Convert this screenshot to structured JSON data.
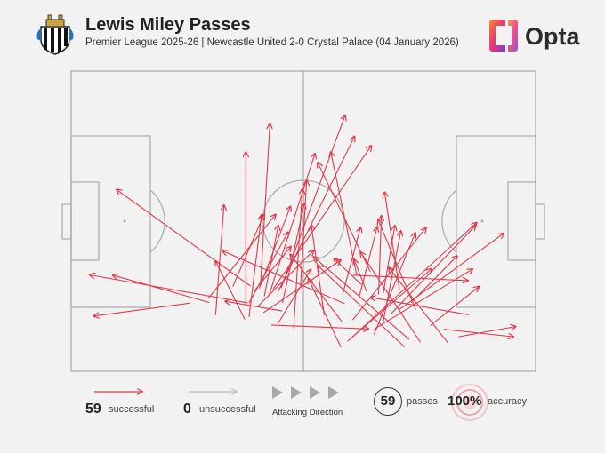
{
  "header": {
    "title": "Lewis Miley Passes",
    "subtitle": "Premier League 2025-26 | Newcastle United 2-0 Crystal Palace (04 January 2026)",
    "brand": "Opta"
  },
  "colors": {
    "successful": "#e0394a",
    "unsuccessful": "#bbbbbb",
    "pitch_line": "#aaaaaa"
  },
  "legend": {
    "successful_count": "59",
    "successful_label": "successful",
    "unsuccessful_count": "0",
    "unsuccessful_label": "unsuccessful",
    "direction_label": "Attacking Direction",
    "passes_count": "59",
    "passes_label": "passes",
    "accuracy_value": "100%",
    "accuracy_label": "accuracy"
  },
  "passes": [
    [
      45.2,
      27.7,
      59.0,
      85.3
    ],
    [
      44.5,
      26.4,
      61.0,
      78.2
    ],
    [
      42.6,
      25.3,
      52.5,
      72.5
    ],
    [
      38.6,
      28.4,
      9.8,
      60.5
    ],
    [
      40.8,
      29.8,
      42.8,
      82.4
    ],
    [
      43.5,
      27.4,
      64.6,
      75.1
    ],
    [
      61.5,
      31.9,
      55.9,
      73.0
    ],
    [
      64.4,
      33.2,
      53.1,
      69.5
    ],
    [
      70.7,
      27.1,
      67.5,
      59.6
    ],
    [
      49.4,
      28.6,
      50.7,
      63.6
    ],
    [
      45.5,
      22.8,
      50.2,
      55.8
    ],
    [
      40.5,
      27.6,
      47.2,
      54.9
    ],
    [
      41.6,
      25.0,
      44.6,
      48.6
    ],
    [
      39.4,
      26.7,
      47.3,
      41.5
    ],
    [
      38.3,
      22.8,
      46.7,
      46.3
    ],
    [
      40.1,
      21.5,
      52.2,
      40.2
    ],
    [
      41.4,
      19.5,
      58.0,
      37.0
    ],
    [
      45.4,
      20.1,
      33.2,
      23.3
    ],
    [
      58.9,
      22.5,
      32.6,
      40.1
    ],
    [
      58.3,
      16.5,
      47.2,
      38.9
    ],
    [
      60.4,
      11.2,
      87.3,
      49.5
    ],
    [
      58.1,
      8.0,
      51.1,
      30.8
    ],
    [
      59.5,
      10.0,
      77.6,
      34.1
    ],
    [
      65.2,
      12.2,
      74.1,
      46.1
    ],
    [
      65.2,
      14.0,
      86.4,
      34.0
    ],
    [
      71.8,
      8.1,
      53.1,
      35.2
    ],
    [
      75.2,
      9.7,
      62.3,
      39.7
    ],
    [
      81.2,
      9.3,
      68.4,
      34.5
    ],
    [
      72.8,
      10.6,
      52.2,
      38.1
    ],
    [
      60.6,
      17.1,
      76.4,
      47.8
    ],
    [
      67.2,
      16.6,
      71.0,
      46.7
    ],
    [
      68.8,
      19.0,
      87.1,
      48.6
    ],
    [
      70.5,
      20.4,
      93.1,
      45.9
    ],
    [
      63.6,
      26.6,
      60.9,
      37.3
    ],
    [
      62.5,
      28.9,
      56.6,
      37.5
    ],
    [
      58.5,
      25.9,
      62.3,
      47.9
    ],
    [
      62.0,
      24.7,
      65.9,
      48.1
    ],
    [
      66.2,
      25.6,
      66.8,
      51.8
    ],
    [
      67.2,
      26.0,
      69.7,
      48.5
    ],
    [
      73.2,
      22.9,
      83.1,
      38.4
    ],
    [
      77.3,
      15.2,
      87.8,
      28.2
    ],
    [
      80.2,
      14.0,
      95.2,
      11.5
    ],
    [
      83.4,
      11.5,
      95.7,
      14.9
    ],
    [
      85.6,
      18.8,
      64.5,
      24.6
    ],
    [
      74.2,
      20.6,
      66.1,
      50.4
    ],
    [
      54.5,
      18.6,
      51.7,
      48.7
    ],
    [
      47.9,
      14.3,
      49.8,
      60.7
    ],
    [
      37.6,
      21.4,
      37.6,
      73.0
    ],
    [
      38.3,
      18.1,
      41.0,
      52.1
    ],
    [
      34.8,
      28.2,
      41.5,
      52.2
    ],
    [
      29.5,
      24.2,
      44.0,
      52.2
    ],
    [
      25.5,
      22.7,
      4.9,
      18.4
    ],
    [
      29.8,
      22.9,
      9.0,
      32.0
    ],
    [
      38.0,
      22.8,
      4.0,
      32.1
    ],
    [
      37.4,
      17.3,
      31.1,
      36.7
    ],
    [
      31.1,
      18.7,
      32.9,
      55.3
    ],
    [
      43.1,
      15.4,
      64.0,
      14.1
    ],
    [
      44.5,
      15.8,
      51.6,
      33.9
    ],
    [
      60.7,
      32.0,
      85.4,
      30.2
    ]
  ]
}
